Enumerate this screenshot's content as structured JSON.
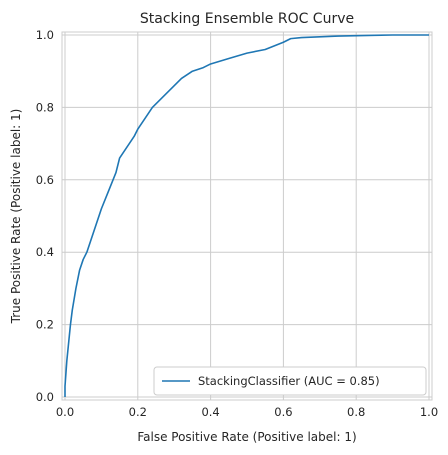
{
  "chart_data": {
    "type": "line",
    "title": "Stacking Ensemble ROC Curve",
    "xlabel": "False Positive Rate (Positive label: 1)",
    "ylabel": "True Positive Rate (Positive label: 1)",
    "xlim": [
      0,
      1
    ],
    "ylim": [
      0,
      1
    ],
    "xticks": [
      "0.0",
      "0.2",
      "0.4",
      "0.6",
      "0.8",
      "1.0"
    ],
    "yticks": [
      "0.0",
      "0.2",
      "0.4",
      "0.6",
      "0.8",
      "1.0"
    ],
    "grid": true,
    "legend_position": "lower-right",
    "series": [
      {
        "name": "StackingClassifier (AUC = 0.85)",
        "color": "#1f77b4",
        "x": [
          0.0,
          0.0,
          0.005,
          0.01,
          0.015,
          0.02,
          0.03,
          0.04,
          0.05,
          0.06,
          0.07,
          0.08,
          0.09,
          0.1,
          0.12,
          0.14,
          0.15,
          0.17,
          0.19,
          0.2,
          0.22,
          0.24,
          0.26,
          0.28,
          0.3,
          0.32,
          0.35,
          0.38,
          0.4,
          0.45,
          0.5,
          0.55,
          0.6,
          0.62,
          0.65,
          0.7,
          0.75,
          0.8,
          0.85,
          0.9,
          1.0
        ],
        "y": [
          0.0,
          0.03,
          0.1,
          0.15,
          0.2,
          0.24,
          0.3,
          0.35,
          0.38,
          0.4,
          0.43,
          0.46,
          0.49,
          0.52,
          0.57,
          0.62,
          0.66,
          0.69,
          0.72,
          0.74,
          0.77,
          0.8,
          0.82,
          0.84,
          0.86,
          0.88,
          0.9,
          0.91,
          0.92,
          0.935,
          0.95,
          0.96,
          0.98,
          0.99,
          0.993,
          0.995,
          0.997,
          0.998,
          0.999,
          1.0,
          1.0
        ]
      }
    ]
  }
}
